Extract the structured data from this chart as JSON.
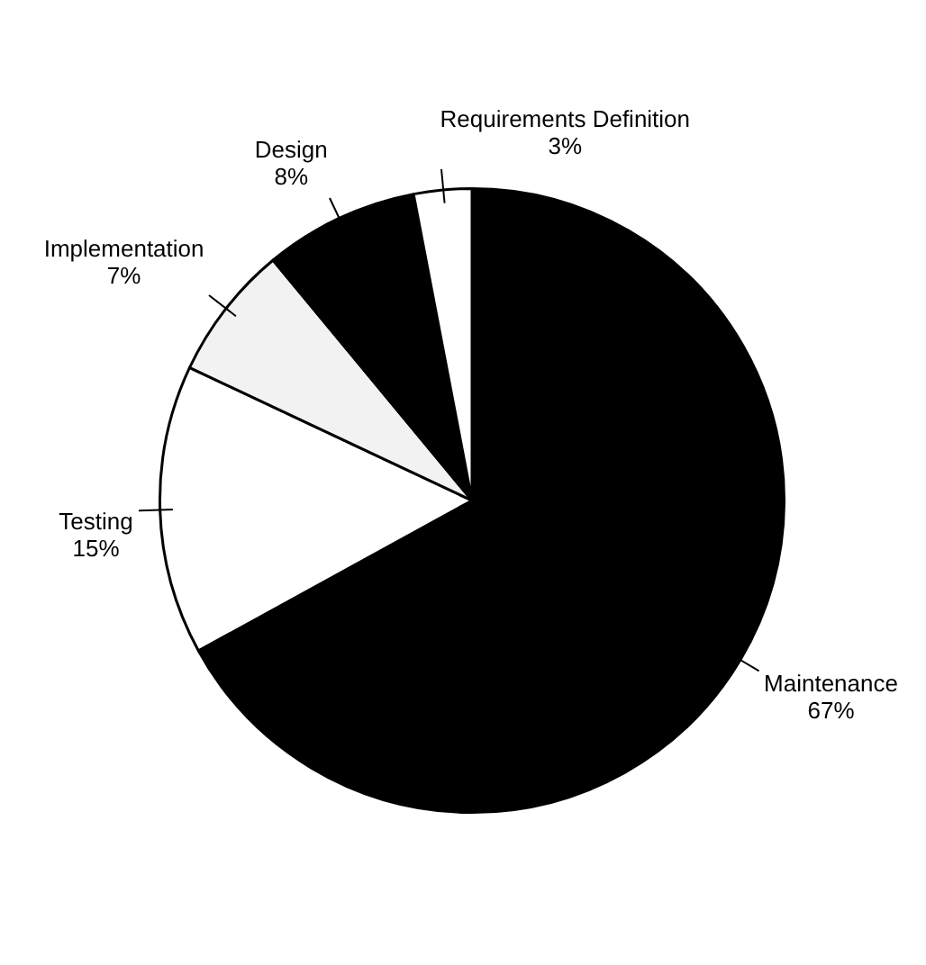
{
  "chart_data": {
    "type": "pie",
    "categories": [
      "Maintenance",
      "Testing",
      "Implementation",
      "Design",
      "Requirements Definition"
    ],
    "values": [
      67,
      15,
      7,
      8,
      3
    ],
    "colors": [
      "#000000",
      "#ffffff",
      "#f2f2f2",
      "#000000",
      "#ffffff"
    ],
    "value_labels": [
      "67%",
      "15%",
      "7%",
      "8%",
      "3%"
    ],
    "legend": false
  }
}
